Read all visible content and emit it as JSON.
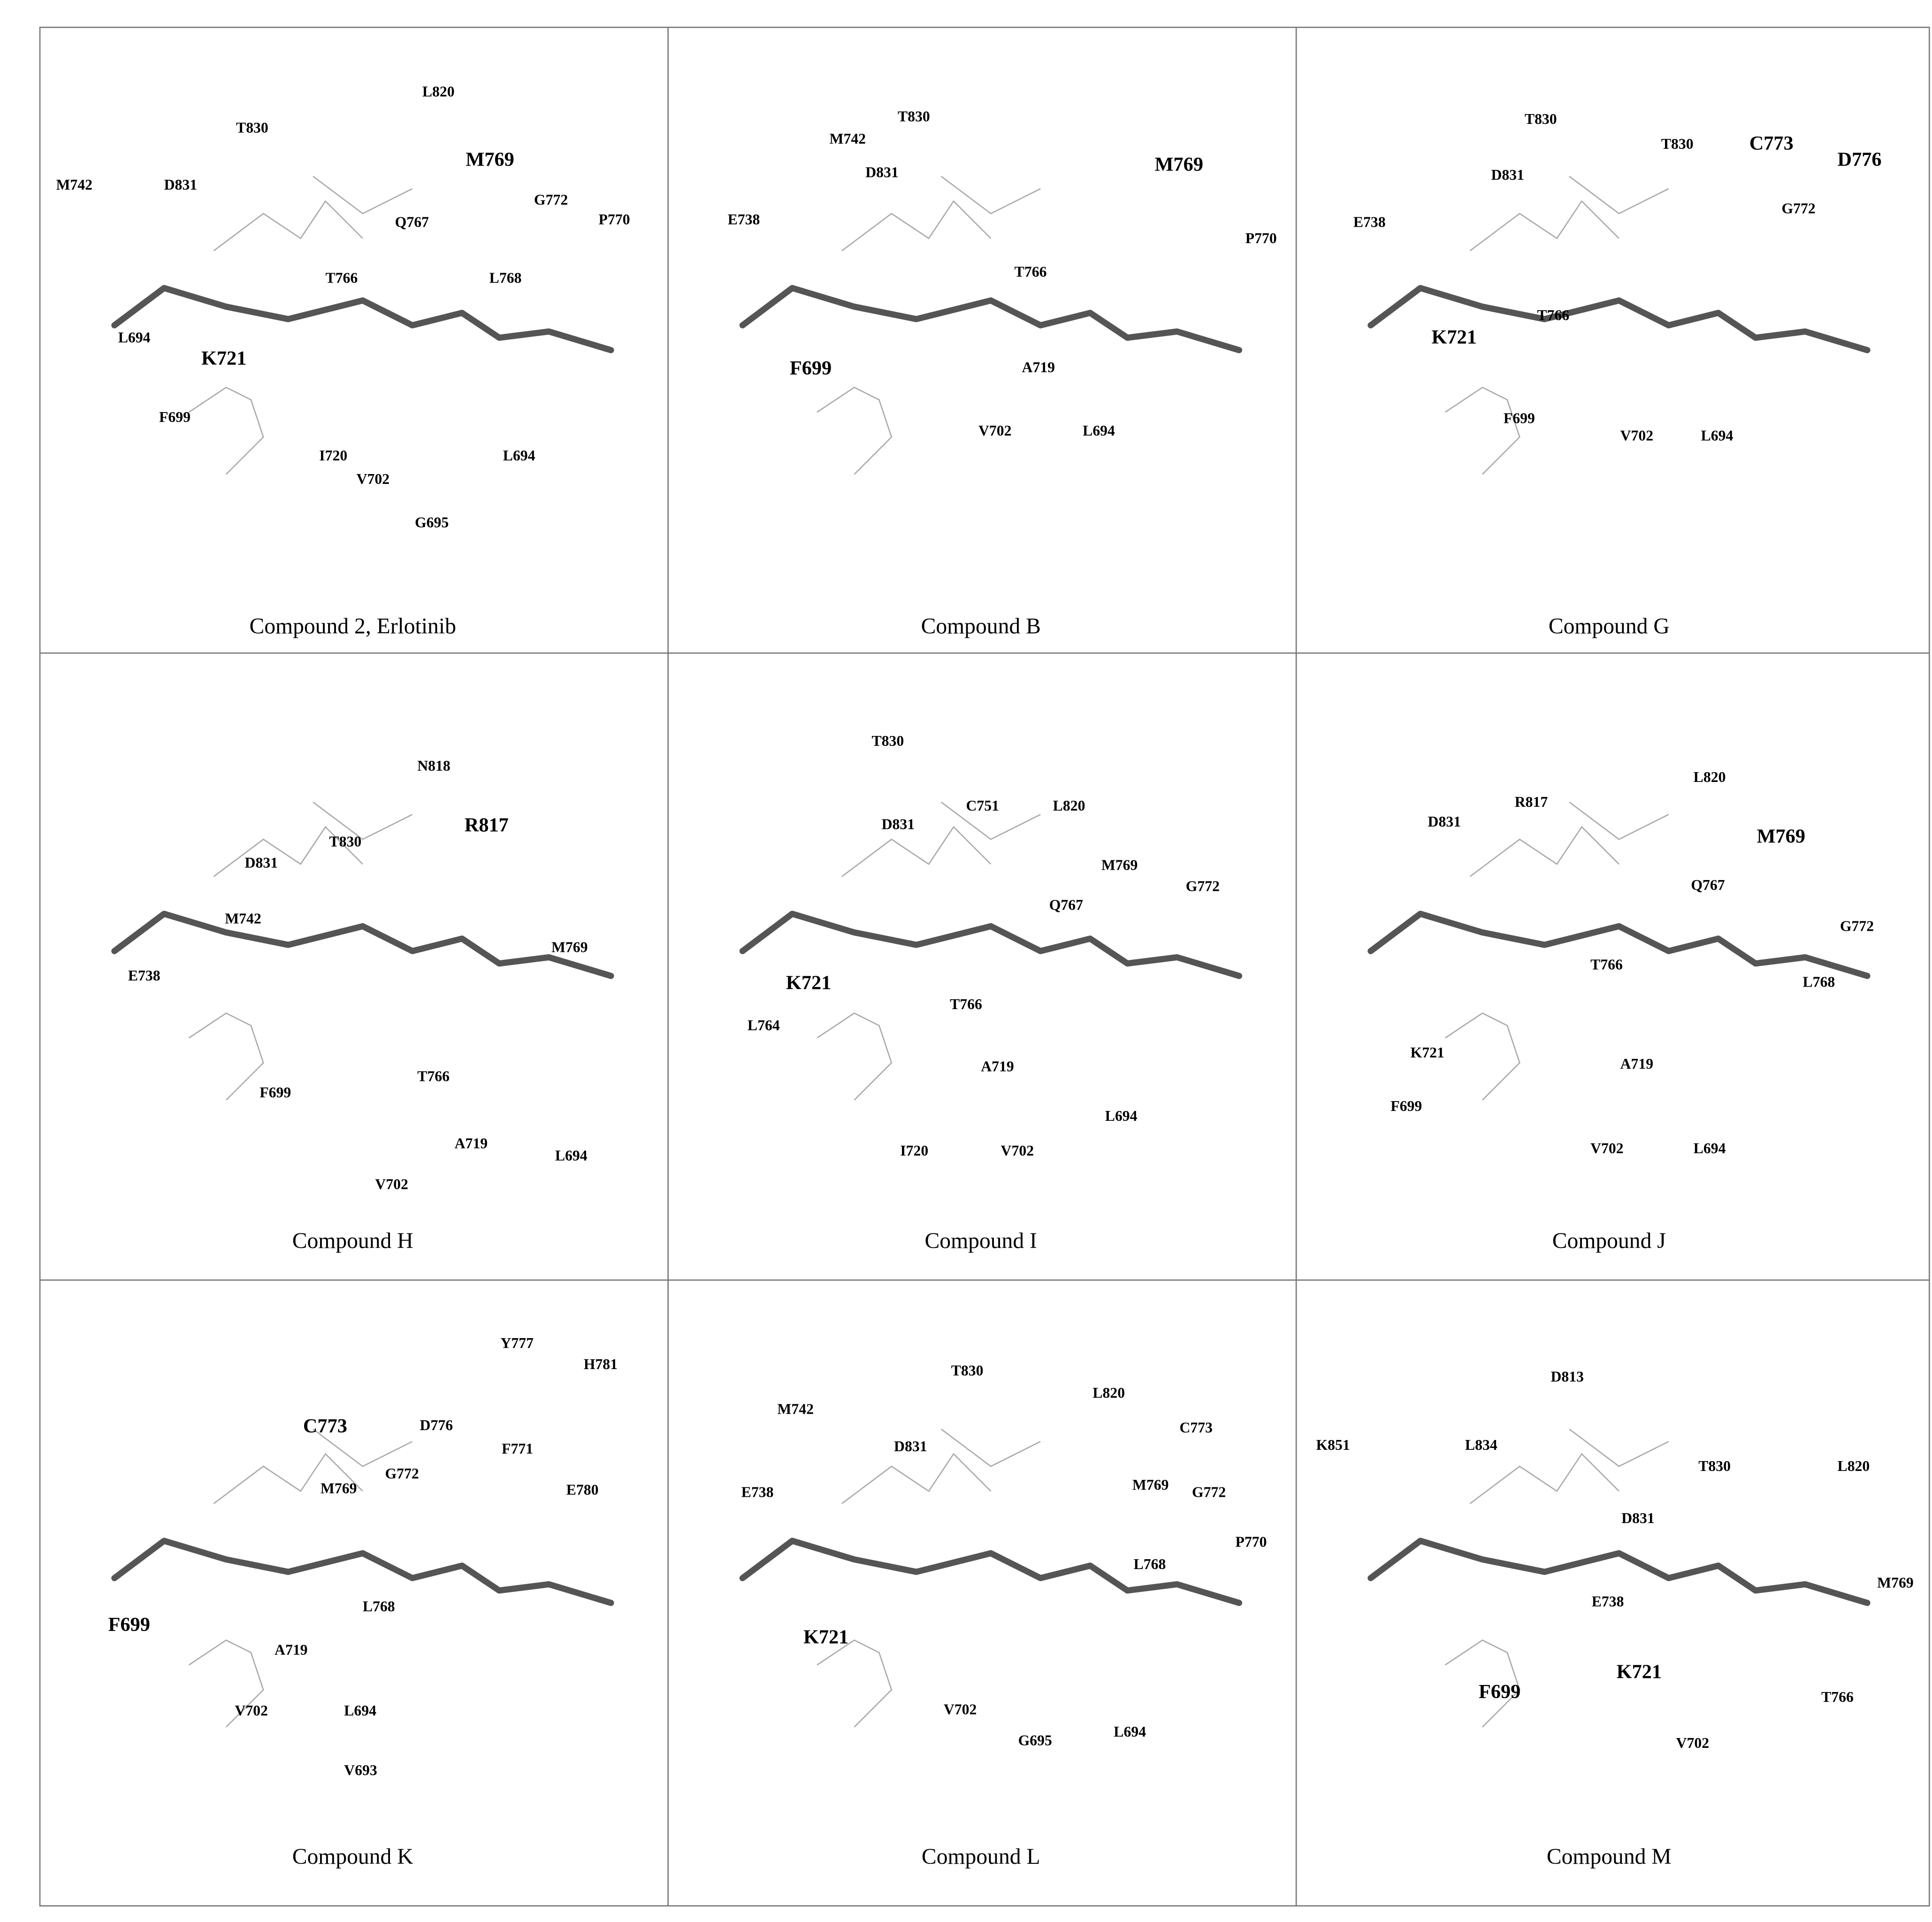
{
  "panels": [
    {
      "caption": "Compound 2, Erlotinib",
      "residues": [
        "L820",
        "T830",
        "M769",
        "M742",
        "D831",
        "G772",
        "P770",
        "Q767",
        "T766",
        "L768",
        "L694",
        "K721",
        "F699",
        "I720",
        "L694",
        "V702",
        "G695"
      ]
    },
    {
      "caption": "Compound B",
      "residues": [
        "T830",
        "M742",
        "D831",
        "E738",
        "M769",
        "P770",
        "T766",
        "F699",
        "A719",
        "V702",
        "L694"
      ]
    },
    {
      "caption": "Compound G",
      "residues": [
        "T830",
        "T830",
        "C773",
        "D776",
        "D831",
        "G772",
        "E738",
        "T766",
        "K721",
        "F699",
        "V702",
        "L694"
      ]
    },
    {
      "caption": "Compound H",
      "residues": [
        "N818",
        "R817",
        "D831",
        "T830",
        "M742",
        "M769",
        "E738",
        "T766",
        "F699",
        "A719",
        "L694",
        "V702"
      ]
    },
    {
      "caption": "Compound I",
      "residues": [
        "T830",
        "C751",
        "L820",
        "D831",
        "M769",
        "G772",
        "Q767",
        "K721",
        "L764",
        "T766",
        "A719",
        "L694",
        "I720",
        "V702"
      ]
    },
    {
      "caption": "Compound J",
      "residues": [
        "L820",
        "R817",
        "D831",
        "M769",
        "Q767",
        "G772",
        "T766",
        "L768",
        "K721",
        "A719",
        "F699",
        "V702",
        "L694"
      ]
    },
    {
      "caption": "Compound K",
      "residues": [
        "Y777",
        "H781",
        "C773",
        "D776",
        "F771",
        "G772",
        "M769",
        "E780",
        "L768",
        "F699",
        "A719",
        "V702",
        "L694",
        "V693"
      ]
    },
    {
      "caption": "Compound L",
      "residues": [
        "T830",
        "L820",
        "M742",
        "D831",
        "C773",
        "E738",
        "M769",
        "G772",
        "L768",
        "P770",
        "K721",
        "V702",
        "G695",
        "L694"
      ]
    },
    {
      "caption": "Compound M",
      "residues": [
        "D813",
        "K851",
        "L834",
        "T830",
        "L820",
        "D831",
        "E738",
        "M769",
        "F699",
        "K721",
        "T766",
        "V702"
      ]
    }
  ]
}
